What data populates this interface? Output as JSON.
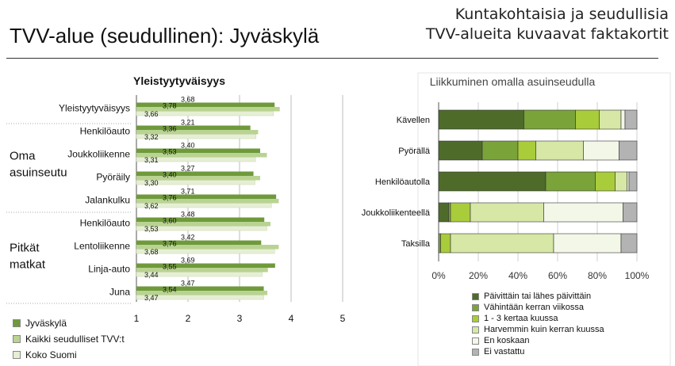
{
  "header": {
    "title": "TVV-alue (seudullinen): Jyväskylä",
    "subtitle_line1": "Kuntakohtaisia ja seudullisia",
    "subtitle_line2": "TVV-alueita kuvaavat faktakortit"
  },
  "chart_data": [
    {
      "type": "bar",
      "orientation": "horizontal",
      "title": "Yleistyytyväisyys",
      "categories": [
        "Yleistyytyväisyys",
        "Henkilöauto",
        "Joukkoliikenne",
        "Pyöräily",
        "Jalankulku",
        "Henkilöauto",
        "Lentoliikenne",
        "Linja-auto",
        "Juna"
      ],
      "series": [
        {
          "name": "Jyväskylä",
          "values": [
            3.68,
            3.21,
            3.4,
            3.27,
            3.71,
            3.48,
            3.42,
            3.69,
            3.47
          ],
          "color": "#6f9a3b"
        },
        {
          "name": "Kaikki seudulliset TVV:t",
          "values": [
            3.78,
            3.36,
            3.53,
            3.4,
            3.76,
            3.6,
            3.76,
            3.55,
            3.54
          ],
          "color": "#b9d392"
        },
        {
          "name": "Koko Suomi",
          "values": [
            3.66,
            3.32,
            3.31,
            3.3,
            3.62,
            3.53,
            3.68,
            3.44,
            3.47
          ],
          "color": "#e6efd5"
        }
      ],
      "value_labels": [
        {
          "top": "3,68",
          "middle": "3,78",
          "bottom": "3,66"
        },
        {
          "top": "3,21",
          "middle": "3,36",
          "bottom": "3,32"
        },
        {
          "top": "3,40",
          "middle": "3,53",
          "bottom": "3,31"
        },
        {
          "top": "3,27",
          "middle": "3,40",
          "bottom": "3,30"
        },
        {
          "top": "3,71",
          "middle": "3,76",
          "bottom": "3,62"
        },
        {
          "top": "3,48",
          "middle": "3,60",
          "bottom": "3,53"
        },
        {
          "top": "3,42",
          "middle": "3,76",
          "bottom": "3,68"
        },
        {
          "top": "3,69",
          "middle": "3,55",
          "bottom": "3,44"
        },
        {
          "top": "3,47",
          "middle": "3,54",
          "bottom": "3,47"
        }
      ],
      "groups": [
        {
          "label_lines": [
            "Oma",
            "asuinseutu"
          ],
          "first_index": 1,
          "last_index": 4
        },
        {
          "label_lines": [
            "Pitkät",
            "matkat"
          ],
          "first_index": 5,
          "last_index": 8
        }
      ],
      "xlim": [
        1,
        5
      ],
      "xticks": [
        "1",
        "2",
        "3",
        "4",
        "5"
      ],
      "grid": true,
      "legend_position": "bottom-left"
    },
    {
      "type": "bar",
      "orientation": "horizontal",
      "stacked": "percent",
      "title": "Liikkuminen omalla asuinseudulla",
      "categories": [
        "Kävellen",
        "Pyörällä",
        "Henkilöautolla",
        "Joukkoliikenteellä",
        "Taksilla"
      ],
      "series": [
        {
          "name": "Päivittäin tai lähes päivittäin",
          "values": [
            43,
            22,
            54,
            5,
            0
          ],
          "color": "#4e6b2a"
        },
        {
          "name": "Vähintään kerran viikossa",
          "values": [
            26,
            18,
            25,
            1,
            1
          ],
          "color": "#7aa33a"
        },
        {
          "name": "1 - 3 kertaa kuussa",
          "values": [
            12,
            9,
            10,
            10,
            5
          ],
          "color": "#a9cc3a"
        },
        {
          "name": "Harvemmin kuin kerran kuussa",
          "values": [
            11,
            24,
            6,
            37,
            52
          ],
          "color": "#d6e7a6"
        },
        {
          "name": "En koskaan",
          "values": [
            2,
            18,
            1,
            40,
            34
          ],
          "color": "#f3f7e8"
        },
        {
          "name": "Ei vastattu",
          "values": [
            6,
            9,
            4,
            7,
            8
          ],
          "color": "#b3b3b3"
        }
      ],
      "xlim": [
        0,
        100
      ],
      "xticks": [
        "0%",
        "20%",
        "40%",
        "60%",
        "80%",
        "100%"
      ],
      "grid": true,
      "legend_position": "bottom"
    }
  ]
}
